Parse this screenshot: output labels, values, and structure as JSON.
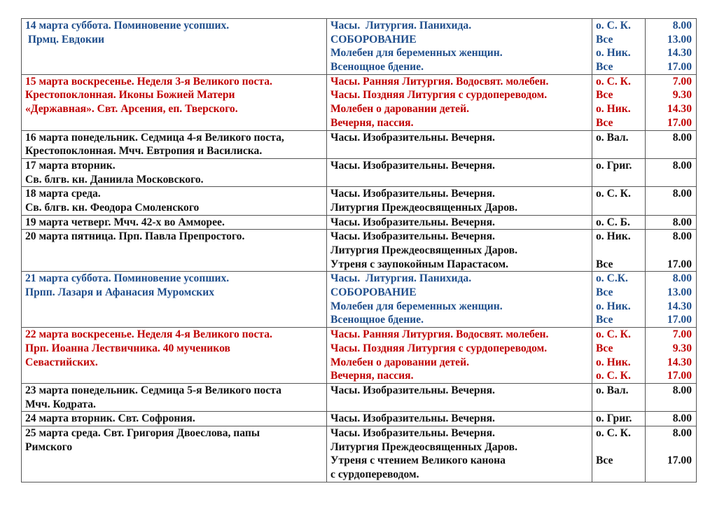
{
  "colors": {
    "blue": "#1f4e8c",
    "red": "#c00000",
    "black": "#111111"
  },
  "rows": [
    {
      "color": "blue",
      "day": [
        "14 марта суббота. Поминовение усопших.",
        " Прмц. Евдокии"
      ],
      "services": [
        {
          "text": "Часы.  Литургия. Панихида.",
          "who": "о. С. К.",
          "time": "8.00"
        },
        {
          "text": "СОБОРОВАНИЕ",
          "who": "Все",
          "time": "13.00"
        },
        {
          "text": "Молебен для беременных женщин.",
          "who": "о. Ник.",
          "time": "14.30"
        },
        {
          "text": "Всенощное бдение.",
          "who": "Все",
          "time": "17.00"
        }
      ]
    },
    {
      "color": "red",
      "day": [
        "15 марта воскресенье. Неделя 3-я Великого поста.",
        "Крестопоклонная. Иконы Божией Матери",
        "«Державная». Свт. Арсения, еп. Тверского."
      ],
      "services": [
        {
          "text": "Часы. Ранняя Литургия. Водосвят. молебен.",
          "who": "о. С. К.",
          "time": "7.00"
        },
        {
          "text": "Часы. Поздняя Литургия с сурдопереводом.",
          "who": "Все",
          "time": "9.30"
        },
        {
          "text": "Молебен о даровании детей.",
          "who": "о. Ник.",
          "time": "14.30"
        },
        {
          "text": "Вечерня, пассия.",
          "who": "Все",
          "time": "17.00"
        }
      ]
    },
    {
      "color": "black",
      "day": [
        "16 марта понедельник. Седмица 4-я Великого поста,",
        "Крестопоклонная. Мчч. Евтропия и Василиска."
      ],
      "services": [
        {
          "text": "Часы. Изобразительны. Вечерня.",
          "who": "о. Вал.",
          "time": "8.00"
        },
        {
          "text": "",
          "who": "",
          "time": ""
        }
      ]
    },
    {
      "color": "black",
      "day": [
        "17 марта вторник.",
        "Св. блгв. кн. Даниила Московского."
      ],
      "services": [
        {
          "text": "Часы. Изобразительны. Вечерня.",
          "who": "о. Григ.",
          "time": "8.00"
        },
        {
          "text": "",
          "who": "",
          "time": ""
        }
      ]
    },
    {
      "color": "black",
      "day": [
        "18 марта среда.",
        "Св. блгв. кн. Феодора Смоленского"
      ],
      "services": [
        {
          "text": "Часы. Изобразительны. Вечерня.",
          "who": "о. С. К.",
          "time": "8.00"
        },
        {
          "text": "Литургия Преждеосвященных Даров.",
          "who": "",
          "time": ""
        }
      ]
    },
    {
      "color": "black",
      "day": [
        "19 марта четверг. Мчч. 42-х во Амморее."
      ],
      "services": [
        {
          "text": "Часы. Изобразительны. Вечерня.",
          "who": "о. С. Б.",
          "time": "8.00"
        }
      ]
    },
    {
      "color": "black",
      "day": [
        "20 марта пятница. Прп. Павла Препростого."
      ],
      "services": [
        {
          "text": "Часы. Изобразительны. Вечерня.",
          "who": "о. Ник.",
          "time": "8.00"
        },
        {
          "text": "Литургия Преждеосвященных Даров.",
          "who": "",
          "time": ""
        },
        {
          "text": "Утреня с заупокойным Парастасом.",
          "who": "Все",
          "time": "17.00"
        }
      ]
    },
    {
      "color": "blue",
      "day": [
        "21 марта суббота. Поминовение усопших.",
        "Прпп. Лазаря и Афанасия Муромских"
      ],
      "services": [
        {
          "text": "Часы.  Литургия. Панихида.",
          "who": "о. С.К.",
          "time": "8.00"
        },
        {
          "text": "СОБОРОВАНИЕ",
          "who": "Все",
          "time": "13.00"
        },
        {
          "text": "Молебен для беременных женщин.",
          "who": "о. Ник.",
          "time": "14.30"
        },
        {
          "text": "Всенощное бдение.",
          "who": "Все",
          "time": "17.00"
        }
      ]
    },
    {
      "color": "red",
      "day": [
        "22 марта воскресенье. Неделя 4-я Великого поста.",
        "Прп. Иоанна Лествичника. 40 мучеников",
        "Севастийских."
      ],
      "services": [
        {
          "text": "Часы. Ранняя Литургия. Водосвят. молебен.",
          "who": "о. С. К.",
          "time": "7.00"
        },
        {
          "text": "Часы. Поздняя Литургия с сурдопереводом.",
          "who": "Все",
          "time": "9.30"
        },
        {
          "text": "Молебен о даровании детей.",
          "who": "о. Ник.",
          "time": "14.30"
        },
        {
          "text": "Вечерня, пассия.",
          "who": "о. С. К.",
          "time": "17.00"
        }
      ]
    },
    {
      "color": "black",
      "day": [
        "23 марта понедельник. Седмица 5-я Великого поста",
        "Мчч. Кодрата."
      ],
      "services": [
        {
          "text": "Часы. Изобразительны. Вечерня.",
          "who": "о. Вал.",
          "time": "8.00"
        },
        {
          "text": "",
          "who": "",
          "time": ""
        }
      ]
    },
    {
      "color": "black",
      "day": [
        "24 марта вторник. Свт. Софрония."
      ],
      "services": [
        {
          "text": "Часы. Изобразительны. Вечерня.",
          "who": "о. Григ.",
          "time": "8.00"
        }
      ]
    },
    {
      "color": "black",
      "day": [
        "25 марта среда. Свт. Григория Двоеслова, папы",
        "Римского"
      ],
      "services": [
        {
          "text": "Часы. Изобразительны. Вечерня.",
          "who": "о. С. К.",
          "time": "8.00"
        },
        {
          "text": "Литургия Преждеосвященных Даров.",
          "who": "",
          "time": ""
        },
        {
          "text": "Утреня с чтением Великого канона",
          "who": "Все",
          "time": "17.00"
        },
        {
          "text": "с сурдопереводом.",
          "who": "",
          "time": ""
        }
      ]
    }
  ]
}
